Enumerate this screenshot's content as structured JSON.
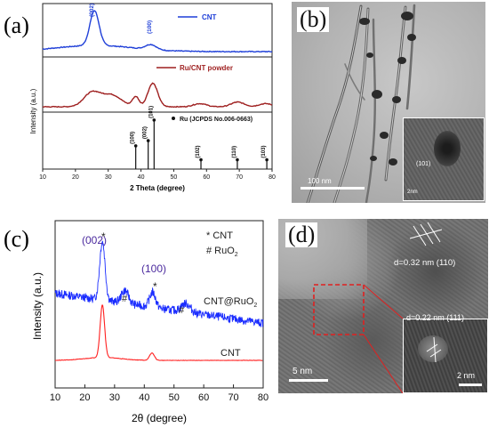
{
  "panel_a": {
    "label": "(a)",
    "legend_top": "CNT",
    "legend_mid": "Ru/CNT powder",
    "legend_bottom": "Ru (JCPDS No.006-0663)",
    "peak_002": "(002)",
    "peak_100": "(100)",
    "ylabel": "Intensity (a.u.)",
    "xlabel": "2 Theta (degree)",
    "xticks": [
      "10",
      "20",
      "30",
      "40",
      "50",
      "60",
      "70",
      "80"
    ],
    "ref_lines": [
      {
        "x": 38.4,
        "h": 0.45,
        "label": "(100)"
      },
      {
        "x": 42.2,
        "h": 0.55,
        "label": "(002)"
      },
      {
        "x": 44.0,
        "h": 0.95,
        "label": "(101)"
      },
      {
        "x": 58.3,
        "h": 0.18,
        "label": "(102)"
      },
      {
        "x": 69.4,
        "h": 0.18,
        "label": "(110)"
      },
      {
        "x": 78.4,
        "h": 0.18,
        "label": "(103)"
      }
    ]
  },
  "panel_b": {
    "label": "(b)",
    "scalebar": "100 nm",
    "inset_text": "(101)",
    "inset_scale": "2nm"
  },
  "panel_c": {
    "label": "(c)",
    "legend1": "* CNT",
    "legend2": "# RuO",
    "legend2_sub": "2",
    "peak_002": "(002)",
    "peak_100": "(100)",
    "star": "*",
    "hash": "#",
    "curve_top": "CNT@RuO",
    "curve_top_sub": "2",
    "curve_bottom": "CNT",
    "ylabel": "Intensity (a.u.)",
    "xlabel": "2θ (degree)",
    "xticks": [
      "10",
      "20",
      "30",
      "40",
      "50",
      "60",
      "70",
      "80"
    ]
  },
  "panel_d": {
    "label": "(d)",
    "d1": "d=0.32 nm (110)",
    "d2": "d=0.22 nm (111)",
    "scalebar": "5 nm",
    "inset_scale": "2 nm"
  },
  "colors": {
    "cnt_blue": "#1f3fd8",
    "ru_red": "#9e1f1f",
    "c_blue": "#1a2cff",
    "c_red": "#ff2020",
    "peak_label": "#4b2a9e"
  }
}
